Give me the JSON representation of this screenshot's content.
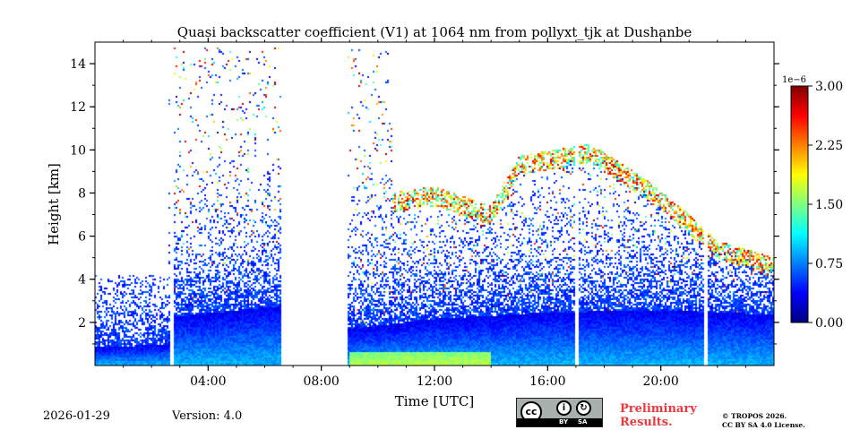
{
  "chart_data": {
    "type": "heatmap",
    "title": "Quasi backscatter coefficient (V1) at 1064 nm from pollyxt_tjk at Dushanbe",
    "xlabel": "Time [UTC]",
    "ylabel": "Height [km]",
    "xlim_hours": [
      0,
      24
    ],
    "ylim_km": [
      0,
      15
    ],
    "x_tick_hours": [
      4,
      8,
      12,
      16,
      20
    ],
    "x_tick_labels": [
      "04:00",
      "08:00",
      "12:00",
      "16:00",
      "20:00"
    ],
    "y_ticks": [
      2,
      4,
      6,
      8,
      10,
      12,
      14
    ],
    "y_tick_labels": [
      "2",
      "4",
      "6",
      "8",
      "10",
      "12",
      "14"
    ],
    "colorbar": {
      "range": [
        0.0,
        3e-06
      ],
      "scale_label": "1e−6",
      "ticks": [
        0.0,
        0.75,
        1.5,
        2.25,
        3.0
      ],
      "tick_labels": [
        "0.00",
        "0.75",
        "1.50",
        "2.25",
        "3.00"
      ],
      "colormap": "jet"
    },
    "gaps_hours": [
      [
        2.68,
        2.78
      ],
      [
        6.6,
        8.9
      ],
      [
        16.97,
        17.08
      ],
      [
        21.55,
        21.68
      ]
    ],
    "boundary_layer_top_km": [
      {
        "t": 0.0,
        "h": 0.9
      },
      {
        "t": 2.6,
        "h": 1.0
      },
      {
        "t": 2.8,
        "h": 2.3
      },
      {
        "t": 6.6,
        "h": 2.8
      },
      {
        "t": 8.9,
        "h": 1.7
      },
      {
        "t": 12.0,
        "h": 2.2
      },
      {
        "t": 16.0,
        "h": 2.5
      },
      {
        "t": 20.0,
        "h": 2.6
      },
      {
        "t": 24.0,
        "h": 2.4
      }
    ],
    "cloud_layer_km": [
      {
        "t": 10.5,
        "h": 7.6
      },
      {
        "t": 12.0,
        "h": 7.9
      },
      {
        "t": 14.0,
        "h": 7.0
      },
      {
        "t": 15.0,
        "h": 9.3
      },
      {
        "t": 17.5,
        "h": 9.9
      },
      {
        "t": 19.5,
        "h": 8.2
      },
      {
        "t": 21.0,
        "h": 6.6
      },
      {
        "t": 22.0,
        "h": 5.4
      },
      {
        "t": 24.0,
        "h": 4.6
      }
    ]
  },
  "footer": {
    "date": "2026-01-29",
    "version": "Version: 4.0",
    "license_badge": {
      "cc": "cc",
      "by": "BY",
      "sa": "SA"
    },
    "preliminary": "Preliminary Results.",
    "copyright_line1": "© TROPOS 2026.",
    "copyright_line2": "CC BY SA 4.0 License."
  },
  "colors": {
    "colormap": [
      "#00007f",
      "#0000ff",
      "#007fff",
      "#00ffff",
      "#7fff7f",
      "#ffff00",
      "#ff7f00",
      "#ff0000",
      "#7f0000"
    ],
    "preliminary_text": "#e8393f"
  }
}
